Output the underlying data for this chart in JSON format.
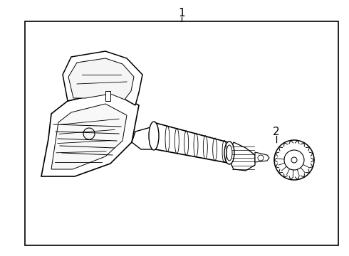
{
  "bg_color": "#ffffff",
  "line_color": "#000000",
  "label1": "1",
  "label2": "2",
  "fig_width": 4.9,
  "fig_height": 3.6,
  "dpi": 100
}
